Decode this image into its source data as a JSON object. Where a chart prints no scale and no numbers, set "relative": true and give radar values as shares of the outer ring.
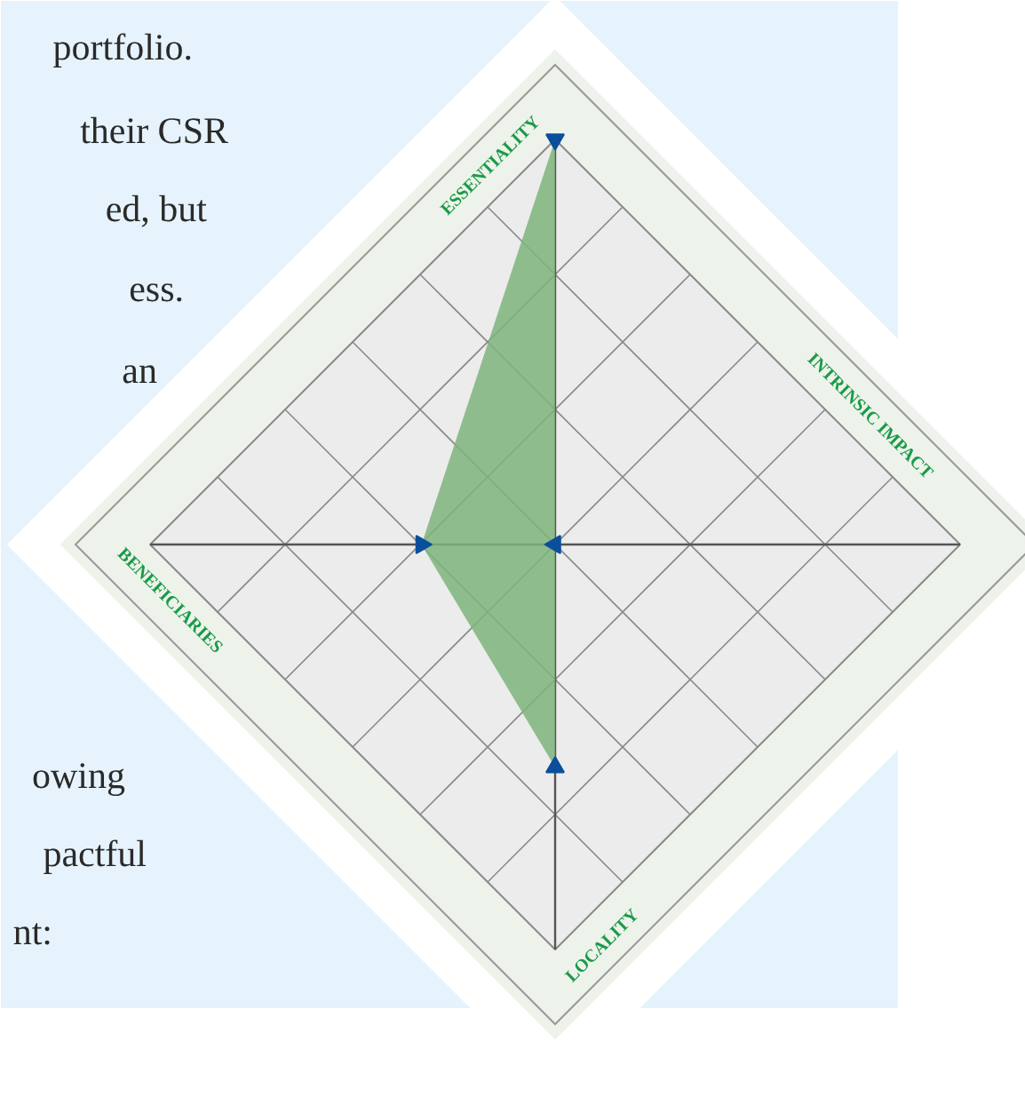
{
  "chart_data": {
    "type": "radar",
    "relative": true,
    "categories": [
      "ESSENTIALITY",
      "INTRINSIC IMPACT",
      "LOCALITY",
      "BENEFICIARIES"
    ],
    "series": [
      {
        "color": "#7fb47d",
        "values": [
          1,
          0,
          0.55,
          0.33
        ]
      }
    ],
    "marker": "triangle",
    "annotations": [
      "portfolio.",
      "their CSR",
      "ed, but",
      "ess.",
      "an",
      "owing",
      "pactful",
      "nt:"
    ]
  }
}
